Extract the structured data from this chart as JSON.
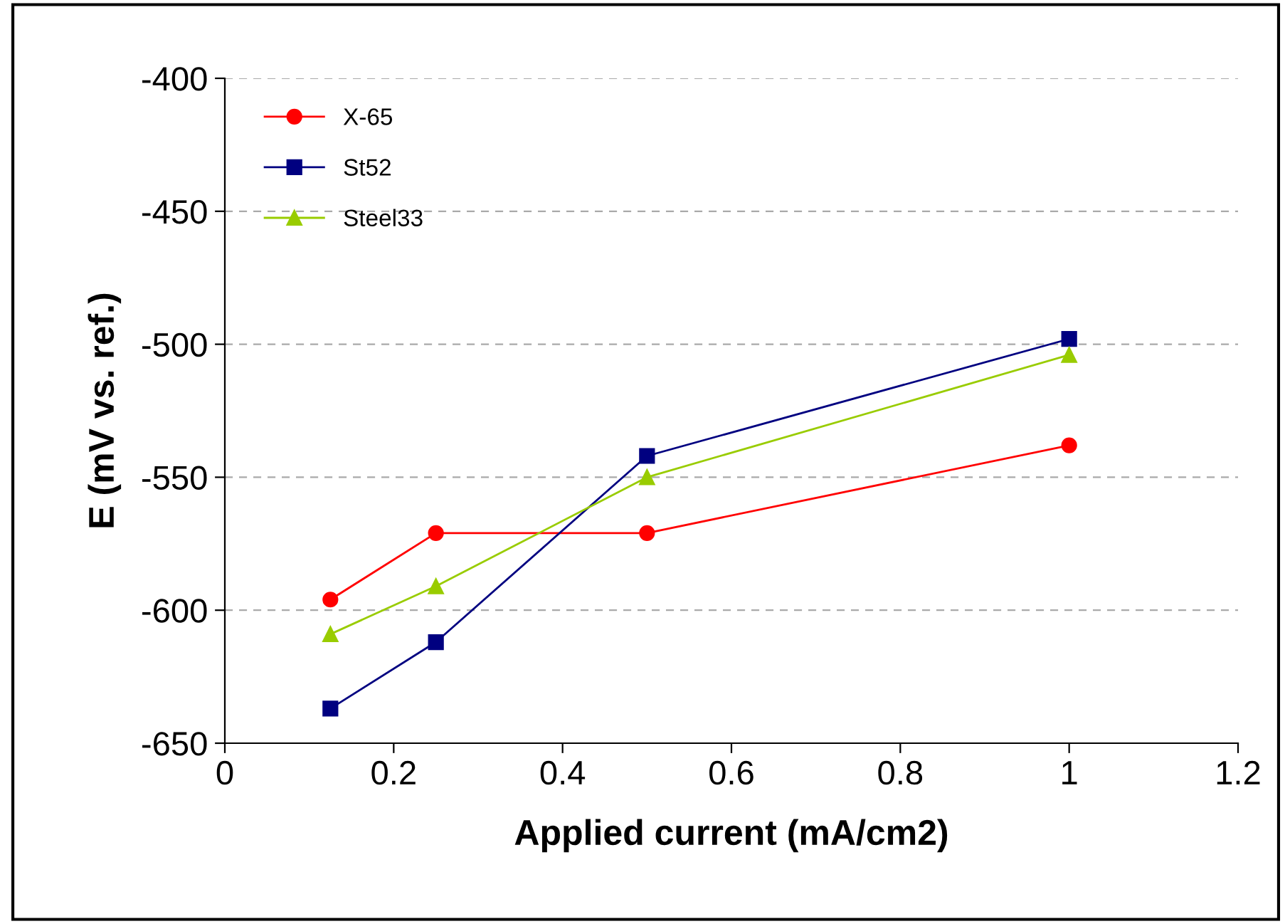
{
  "chart_data": {
    "type": "line",
    "xlabel": "Applied current (mA/cm2)",
    "ylabel": "E (mV vs. ref.)",
    "series": [
      {
        "name": "X-65",
        "color": "#ff0000",
        "marker": "circle",
        "x": [
          0.125,
          0.25,
          0.5,
          1
        ],
        "values": [
          -596,
          -571,
          -571,
          -538
        ]
      },
      {
        "name": "St52",
        "color": "#000080",
        "marker": "square",
        "x": [
          0.125,
          0.25,
          0.5,
          1
        ],
        "values": [
          -637,
          -612,
          -542,
          -498
        ]
      },
      {
        "name": "Steel33",
        "color": "#99cc00",
        "marker": "triangle",
        "x": [
          0.125,
          0.25,
          0.5,
          1
        ],
        "values": [
          -609,
          -591,
          -550,
          -504
        ]
      }
    ],
    "xlim": [
      0,
      1.2
    ],
    "xticks": [
      0,
      0.2,
      0.4,
      0.6,
      0.8,
      1,
      1.2
    ],
    "ylim": [
      -650,
      -400
    ],
    "yticks": [
      -650,
      -600,
      -550,
      -500,
      -450,
      -400
    ],
    "grid": "y",
    "legend": "top left",
    "line_style": "solid"
  }
}
